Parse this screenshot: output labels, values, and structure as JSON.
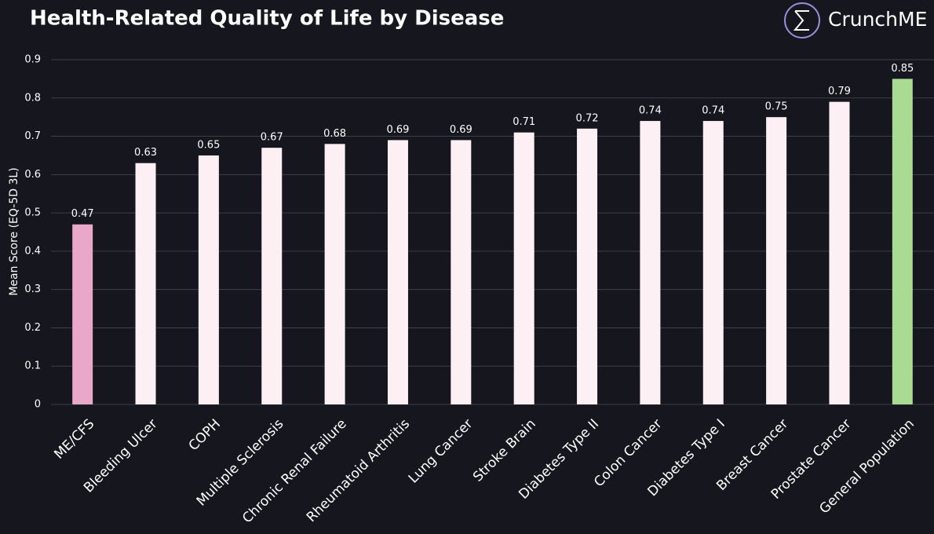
{
  "brand": "CrunchME",
  "chart_data": {
    "type": "bar",
    "title": "Health-Related Quality of Life by Disease",
    "y_label": "Mean Score (EQ-5D 3L)",
    "categories": [
      "ME/CFS",
      "Bleeding Ulcer",
      "COPH",
      "Multiple Sclerosis",
      "Chronic Renal Failure",
      "Rheumatoid Arthritis",
      "Lung Cancer",
      "Stroke Brain",
      "Diabetes Type II",
      "Colon Cancer",
      "Diabetes Type I",
      "Breast Cancer",
      "Prostate Cancer",
      "General Population"
    ],
    "values": [
      0.47,
      0.63,
      0.65,
      0.67,
      0.68,
      0.69,
      0.69,
      0.71,
      0.72,
      0.74,
      0.74,
      0.75,
      0.79,
      0.85
    ],
    "colors": [
      "#e9a8c9",
      "#fdf0f4",
      "#fdf0f4",
      "#fdf0f4",
      "#fdf0f4",
      "#fdf0f4",
      "#fdf0f4",
      "#fdf0f4",
      "#fdf0f4",
      "#fdf0f4",
      "#fdf0f4",
      "#fdf0f4",
      "#fdf0f4",
      "#a9dc92"
    ],
    "ylim": [
      0,
      0.9
    ],
    "yticks": [
      0,
      0.1,
      0.2,
      0.3,
      0.4,
      0.5,
      0.6,
      0.7,
      0.8,
      0.9
    ],
    "grid": true
  }
}
